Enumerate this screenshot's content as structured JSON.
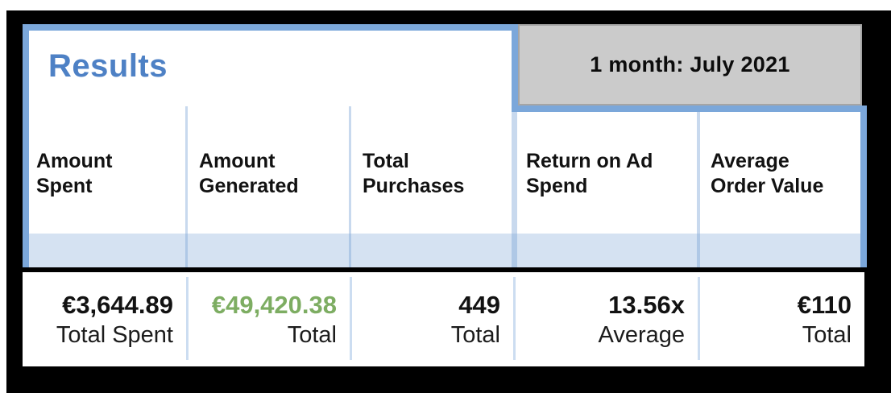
{
  "panel": {
    "title": "Results",
    "period_badge": "1 month: July 2021"
  },
  "chart_data": {
    "type": "table",
    "title": "Results",
    "period": "1 month: July 2021",
    "columns": [
      "Amount Spent",
      "Amount Generated",
      "Total Purchases",
      "Return on Ad Spend",
      "Average Order Value"
    ],
    "values": [
      "€3,644.89",
      "€49,420.38",
      "449",
      "13.56x",
      "€110"
    ],
    "captions": [
      "Total Spent",
      "Total",
      "Total",
      "Average",
      "Total"
    ],
    "highlight": {
      "column": "Amount Generated",
      "value": "€49,420.38",
      "color": "green"
    }
  },
  "colors": {
    "accent_blue": "#7BA7DA",
    "title_blue": "#4E81C5",
    "band_blue": "#D5E2F2",
    "separator_blue": "#CCDDF1",
    "gray_badge": "#CBCBCB",
    "value_green": "#7DAD62",
    "frame_black": "#000000"
  }
}
